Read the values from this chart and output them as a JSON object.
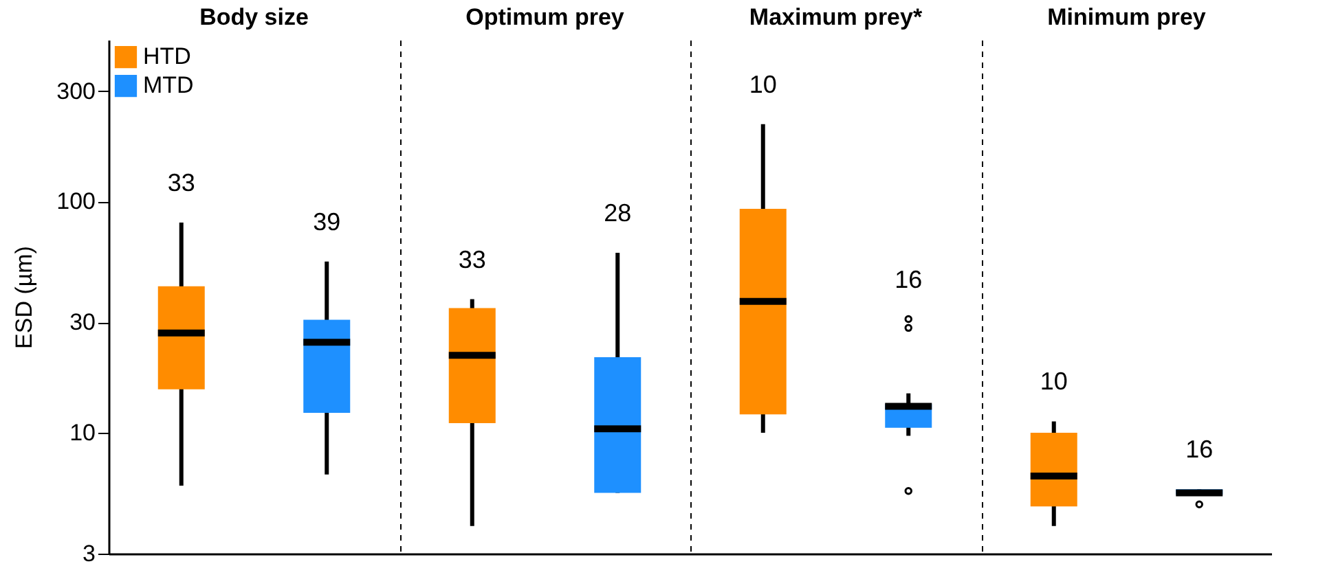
{
  "chart_data": {
    "type": "box",
    "categories": [
      "Body size",
      "Optimum prey",
      "Maximum prey*",
      "Minimum prey"
    ],
    "ylabel": "ESD (µm)",
    "log": true,
    "ylim": [
      3,
      500
    ],
    "yticks": [
      3,
      10,
      30,
      100,
      300
    ],
    "legend": "top left",
    "grid": "x",
    "series": [
      {
        "name": "HTD",
        "color": "#ff8c00",
        "boxes": [
          {
            "low": 5.9,
            "q1": 15.4,
            "median": 27,
            "q3": 43,
            "high": 81
          },
          {
            "low": 3.95,
            "q1": 11.0,
            "median": 21.6,
            "q3": 34.6,
            "high": 37.8
          },
          {
            "low": 10.0,
            "q1": 12.0,
            "median": 37,
            "q3": 93,
            "high": 216
          },
          {
            "low": 3.95,
            "q1": 4.8,
            "median": 6.5,
            "q3": 10.0,
            "high": 11.2
          }
        ]
      },
      {
        "name": "MTD",
        "color": "#1e90ff",
        "boxes": [
          {
            "low": 6.6,
            "q1": 12.2,
            "median": 24.6,
            "q3": 30.8,
            "high": 55
          },
          {
            "low": 5.5,
            "q1": 5.5,
            "median": 10.4,
            "q3": 21.2,
            "high": 60
          },
          {
            "low": 9.7,
            "q1": 10.5,
            "median": 13.0,
            "q3": 13.3,
            "high": 14.8,
            "outliers": [
              31,
              28.4,
              5.6
            ]
          },
          {
            "low": 5.4,
            "q1": 5.4,
            "median": 5.5,
            "q3": 5.7,
            "high": 5.7,
            "outliers": [
              4.9
            ]
          }
        ]
      }
    ],
    "annotations": [
      "33",
      "39",
      "33",
      "28",
      "10",
      "16",
      "10",
      "16"
    ]
  }
}
